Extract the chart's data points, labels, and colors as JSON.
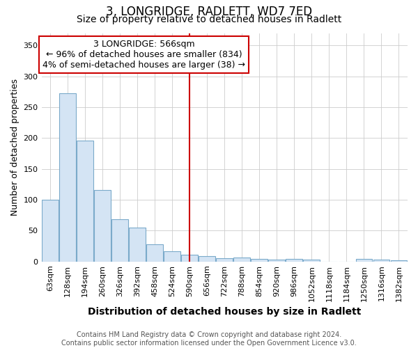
{
  "title": "3, LONGRIDGE, RADLETT, WD7 7ED",
  "subtitle": "Size of property relative to detached houses in Radlett",
  "xlabel": "Distribution of detached houses by size in Radlett",
  "ylabel": "Number of detached properties",
  "categories": [
    "63sqm",
    "128sqm",
    "194sqm",
    "260sqm",
    "326sqm",
    "392sqm",
    "458sqm",
    "524sqm",
    "590sqm",
    "656sqm",
    "722sqm",
    "788sqm",
    "854sqm",
    "920sqm",
    "986sqm",
    "1052sqm",
    "1118sqm",
    "1184sqm",
    "1250sqm",
    "1316sqm",
    "1382sqm"
  ],
  "values": [
    100,
    272,
    196,
    116,
    69,
    55,
    28,
    17,
    11,
    9,
    5,
    7,
    4,
    3,
    4,
    3,
    0,
    0,
    4,
    3,
    2
  ],
  "bar_color": "#d4e4f4",
  "bar_edge_color": "#7aaaca",
  "ylim": [
    0,
    370
  ],
  "yticks": [
    0,
    50,
    100,
    150,
    200,
    250,
    300,
    350
  ],
  "vline_x_index": 8,
  "vline_color": "#cc0000",
  "annotation_text": "3 LONGRIDGE: 566sqm\n← 96% of detached houses are smaller (834)\n4% of semi-detached houses are larger (38) →",
  "annotation_box_color": "#cc0000",
  "footer_line1": "Contains HM Land Registry data © Crown copyright and database right 2024.",
  "footer_line2": "Contains public sector information licensed under the Open Government Licence v3.0.",
  "background_color": "#ffffff",
  "plot_background": "#ffffff",
  "title_fontsize": 12,
  "subtitle_fontsize": 10,
  "xlabel_fontsize": 10,
  "ylabel_fontsize": 9,
  "tick_fontsize": 8,
  "footer_fontsize": 7
}
